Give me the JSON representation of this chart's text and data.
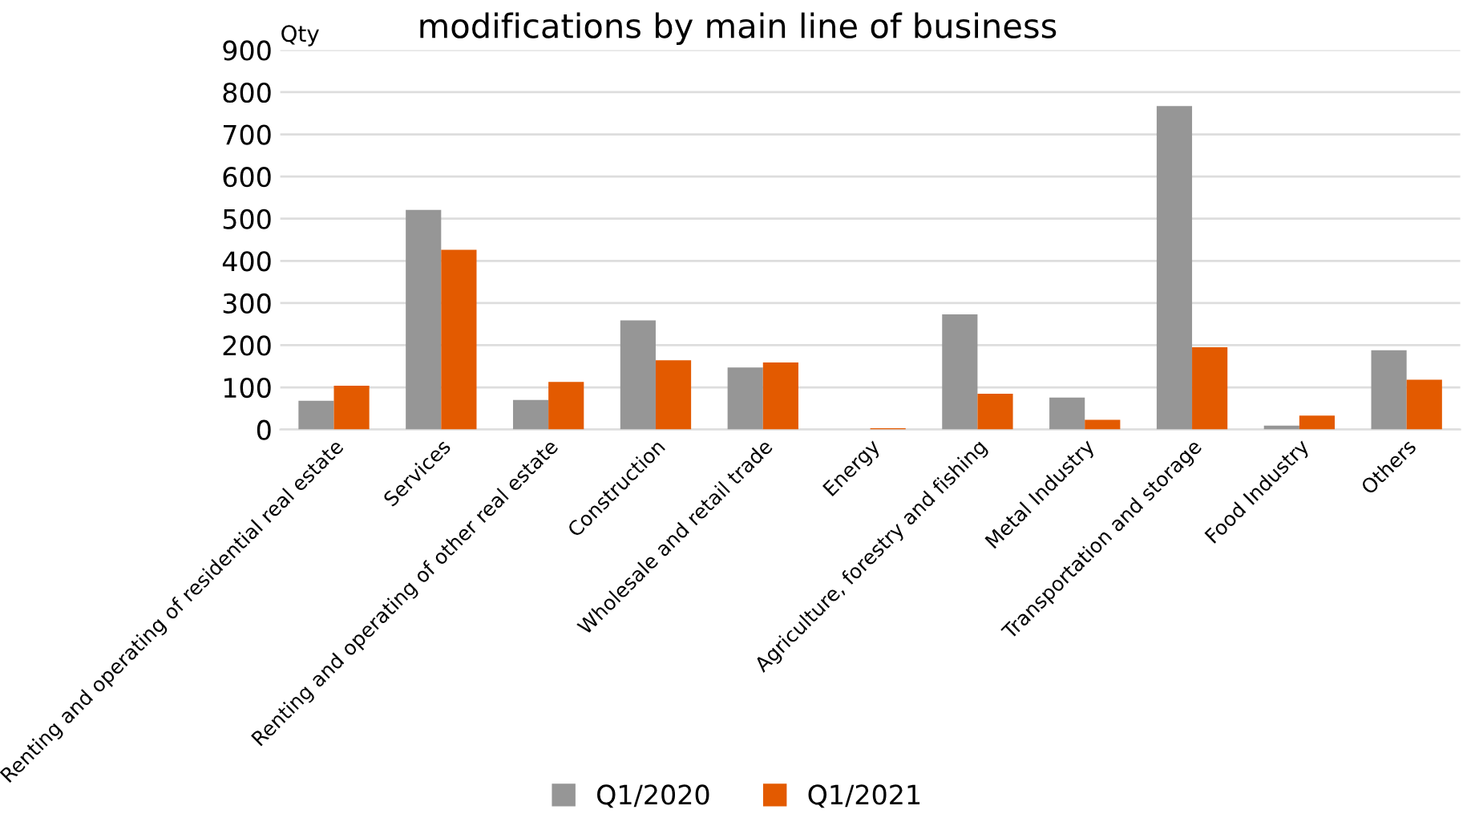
{
  "chart_data": {
    "type": "bar",
    "title": "modifications by main line of business",
    "ylabel": "Qty",
    "categories": [
      "Renting and operating of residential real estate",
      "Services",
      "Renting and operating of other real estate",
      "Construction",
      "Wholesale and retail trade",
      "Energy",
      "Agriculture, forestry and fishing",
      "Metal Industry",
      "Transportation and storage",
      "Food Industry",
      "Others"
    ],
    "series": [
      {
        "name": "Q1/2020",
        "color": "#969696",
        "values": [
          68,
          521,
          70,
          259,
          147,
          0,
          273,
          76,
          767,
          9,
          188
        ]
      },
      {
        "name": "Q1/2021",
        "color": "#e35a00",
        "values": [
          104,
          426,
          113,
          164,
          159,
          3,
          85,
          23,
          195,
          33,
          118
        ]
      }
    ],
    "ylim": [
      0,
      900
    ],
    "yticks": [
      0,
      100,
      200,
      300,
      400,
      500,
      600,
      700,
      800,
      900
    ],
    "grid": "y",
    "legend": "bottom"
  }
}
